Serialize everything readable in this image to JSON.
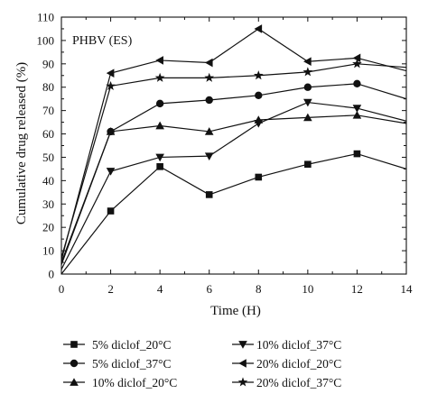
{
  "chart_data": {
    "type": "line",
    "panel_label": "PHBV (ES)",
    "xlabel": "Time (H)",
    "ylabel": "Cumulative drug released (%)",
    "xlim": [
      0,
      14
    ],
    "ylim": [
      0,
      110
    ],
    "xticks": [
      0,
      2,
      4,
      6,
      8,
      10,
      12,
      14
    ],
    "yticks": [
      0,
      10,
      20,
      30,
      40,
      50,
      60,
      70,
      80,
      90,
      100,
      110
    ],
    "grid": false,
    "legend_position": "bottom",
    "series": [
      {
        "name": "5% diclof_20°C",
        "marker": "square",
        "x": [
          0,
          2,
          4,
          6,
          8,
          10,
          12,
          14
        ],
        "y": [
          0,
          27,
          46,
          34,
          41.5,
          47,
          51.5,
          45
        ]
      },
      {
        "name": "5% diclof_37°C",
        "marker": "circle",
        "x": [
          0,
          2,
          4,
          6,
          8,
          10,
          12,
          14
        ],
        "y": [
          5,
          61,
          73,
          74.5,
          76.5,
          80,
          81.5,
          75
        ]
      },
      {
        "name": "10% diclof_20°C",
        "marker": "triangle-up",
        "x": [
          0,
          2,
          4,
          6,
          8,
          10,
          12,
          14
        ],
        "y": [
          4,
          61,
          63.5,
          61,
          66,
          67,
          68,
          64.5
        ]
      },
      {
        "name": "10% diclof_37°C",
        "marker": "triangle-down",
        "x": [
          0,
          2,
          4,
          6,
          8,
          10,
          12,
          14
        ],
        "y": [
          2,
          44,
          50,
          50.5,
          64.5,
          73.5,
          71,
          65.5
        ]
      },
      {
        "name": "20% diclof_20°C",
        "marker": "triangle-left",
        "x": [
          0,
          2,
          4,
          6,
          8,
          10,
          12,
          14
        ],
        "y": [
          6,
          86,
          91.5,
          90.5,
          105,
          91,
          92.5,
          87
        ]
      },
      {
        "name": "20% diclof_37°C",
        "marker": "star",
        "x": [
          0,
          2,
          4,
          6,
          8,
          10,
          12,
          14
        ],
        "y": [
          7,
          80.5,
          84,
          84,
          85,
          86.5,
          90,
          88.5
        ]
      }
    ]
  }
}
